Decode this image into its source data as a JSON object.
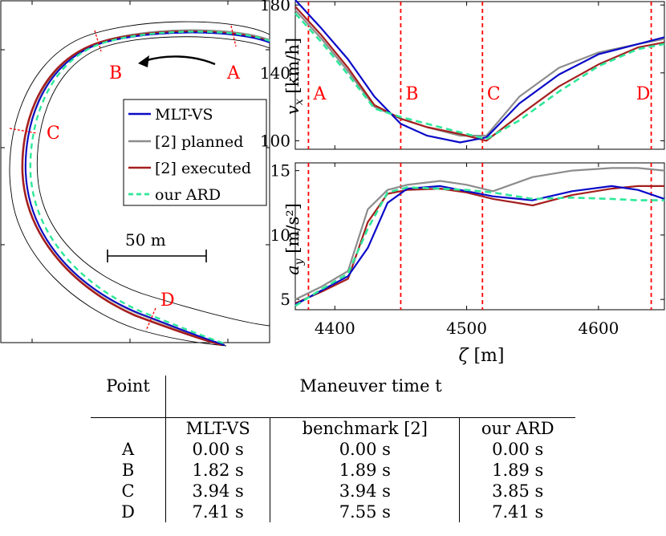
{
  "track": {
    "scale_label": "50 m",
    "points": [
      "A",
      "B",
      "C",
      "D"
    ],
    "legend": [
      "MLT-VS",
      "[2] planned",
      "[2] executed",
      "our ARD"
    ]
  },
  "colors": {
    "mlt": "#0a0ac8",
    "planned": "#8c8c8c",
    "executed": "#a51e1e",
    "ard": "#2ee89a",
    "marker": "#ff0000"
  },
  "chart_data": [
    {
      "type": "line",
      "ylabel": "v_x [km/h]",
      "xlim": [
        4370,
        4650
      ],
      "ylim": [
        95,
        182
      ],
      "yticks": [
        100,
        140,
        180
      ],
      "markers": [
        {
          "label": "A",
          "x": 4380
        },
        {
          "label": "B",
          "x": 4450
        },
        {
          "label": "C",
          "x": 4512
        },
        {
          "label": "D",
          "x": 4640
        }
      ],
      "series": [
        {
          "name": "MLT-VS",
          "x": [
            4370,
            4390,
            4410,
            4430,
            4450,
            4470,
            4495,
            4515,
            4540,
            4570,
            4600,
            4630,
            4650
          ],
          "y": [
            183,
            166,
            148,
            126,
            110,
            103,
            99,
            102,
            122,
            139,
            151,
            157,
            161
          ]
        },
        {
          "name": "[2] planned",
          "x": [
            4370,
            4390,
            4410,
            4430,
            4450,
            4470,
            4495,
            4515,
            4540,
            4570,
            4600,
            4630,
            4650
          ],
          "y": [
            177,
            160,
            141,
            120,
            113,
            108,
            103,
            103,
            126,
            143,
            152,
            157,
            160
          ]
        },
        {
          "name": "[2] executed",
          "x": [
            4370,
            4390,
            4410,
            4430,
            4450,
            4470,
            4495,
            4515,
            4540,
            4570,
            4600,
            4630,
            4650
          ],
          "y": [
            179,
            162,
            143,
            121,
            113,
            108,
            104,
            100,
            115,
            132,
            145,
            155,
            158
          ]
        },
        {
          "name": "our ARD",
          "x": [
            4370,
            4390,
            4410,
            4430,
            4450,
            4470,
            4495,
            4515,
            4540,
            4570,
            4600,
            4630,
            4650
          ],
          "y": [
            175,
            158,
            139,
            119,
            114,
            110,
            105,
            101,
            112,
            129,
            144,
            154,
            157
          ]
        }
      ]
    },
    {
      "type": "line",
      "xlabel": "ζ [m]",
      "ylabel": "a_y [m/s²]",
      "xlim": [
        4370,
        4650
      ],
      "ylim": [
        4.2,
        15.6
      ],
      "yticks": [
        5,
        10,
        15
      ],
      "xticks": [
        4400,
        4500,
        4600
      ],
      "markers": [
        {
          "label": "A",
          "x": 4380
        },
        {
          "label": "B",
          "x": 4450
        },
        {
          "label": "C",
          "x": 4512
        },
        {
          "label": "D",
          "x": 4640
        }
      ],
      "series": [
        {
          "name": "MLT-VS",
          "x": [
            4370,
            4390,
            4410,
            4425,
            4440,
            4455,
            4480,
            4500,
            4520,
            4550,
            4580,
            4610,
            4630,
            4650
          ],
          "y": [
            4.6,
            5.7,
            6.8,
            9.0,
            12.5,
            13.6,
            13.8,
            13.4,
            13.0,
            12.7,
            13.4,
            13.8,
            13.5,
            12.8
          ]
        },
        {
          "name": "[2] planned",
          "x": [
            4370,
            4390,
            4410,
            4425,
            4440,
            4455,
            4480,
            4500,
            4520,
            4550,
            4580,
            4610,
            4630,
            4650
          ],
          "y": [
            5.0,
            6.0,
            7.2,
            12.0,
            13.5,
            13.9,
            14.2,
            13.9,
            13.4,
            14.5,
            15.0,
            15.2,
            15.2,
            15.0
          ]
        },
        {
          "name": "[2] executed",
          "x": [
            4370,
            4390,
            4410,
            4425,
            4440,
            4455,
            4480,
            4500,
            4520,
            4550,
            4580,
            4610,
            4630,
            4650
          ],
          "y": [
            4.7,
            5.6,
            6.6,
            11.0,
            13.2,
            13.5,
            13.6,
            13.3,
            12.8,
            12.3,
            13.1,
            13.6,
            13.8,
            13.8
          ]
        },
        {
          "name": "our ARD",
          "x": [
            4370,
            4390,
            4410,
            4425,
            4440,
            4455,
            4480,
            4500,
            4520,
            4550,
            4580,
            4610,
            4630,
            4650
          ],
          "y": [
            4.5,
            5.8,
            7.0,
            10.5,
            13.3,
            13.7,
            13.6,
            13.5,
            13.3,
            12.8,
            12.9,
            12.8,
            12.7,
            12.7
          ]
        }
      ]
    }
  ],
  "table": {
    "header_left": "Point",
    "header_group": "Maneuver time t",
    "columns": [
      "MLT-VS",
      "benchmark [2]",
      "our ARD"
    ],
    "rows": [
      {
        "point": "A",
        "values": [
          "0.00 s",
          "0.00 s",
          "0.00 s"
        ]
      },
      {
        "point": "B",
        "values": [
          "1.82 s",
          "1.89 s",
          "1.89 s"
        ]
      },
      {
        "point": "C",
        "values": [
          "3.94 s",
          "3.94 s",
          "3.85 s"
        ]
      },
      {
        "point": "D",
        "values": [
          "7.41 s",
          "7.55 s",
          "7.41 s"
        ]
      }
    ]
  }
}
